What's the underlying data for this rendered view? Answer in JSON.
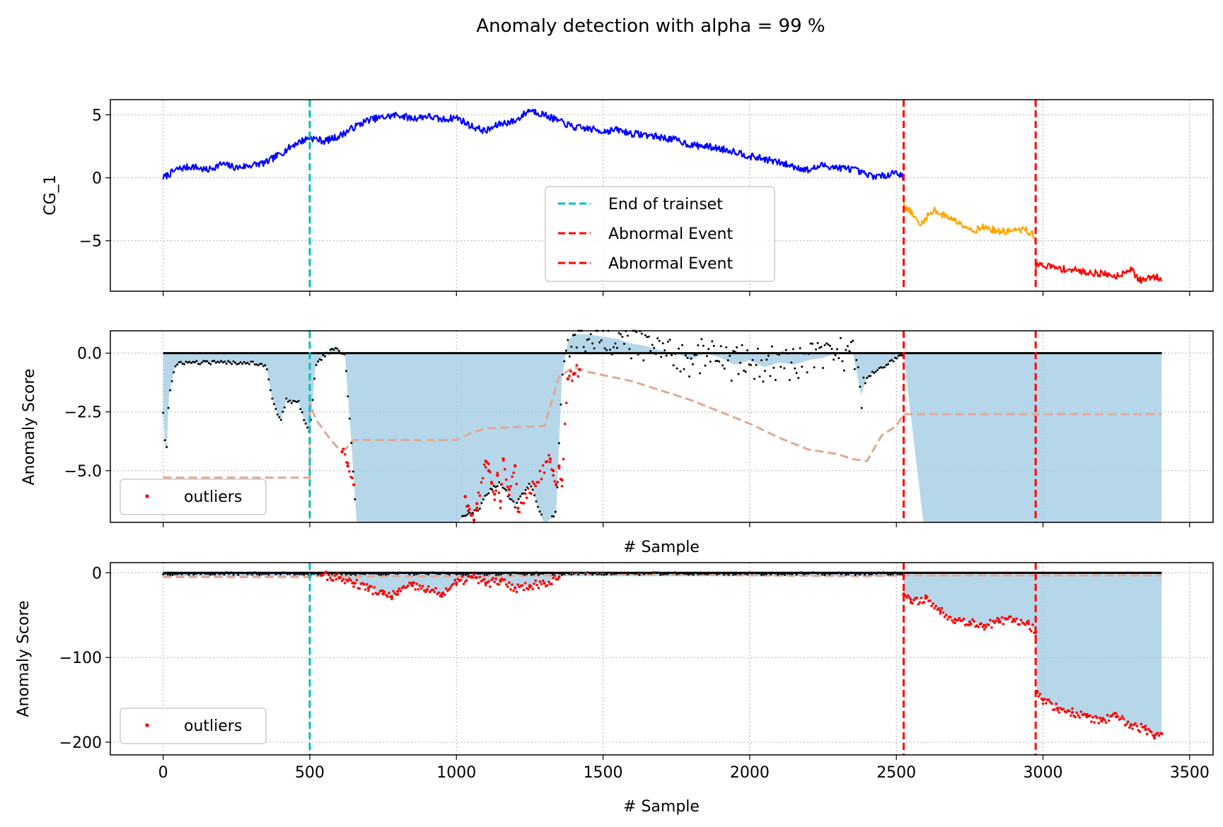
{
  "figure": {
    "title": "Anomaly detection with alpha = 99 %"
  },
  "chart_data": [
    {
      "type": "line",
      "ylabel": "CG_1",
      "xlabel": "",
      "xlim": [
        -180,
        3580
      ],
      "ylim": [
        -9.0,
        6.2
      ],
      "x_ticks": [
        0,
        500,
        1000,
        1500,
        2000,
        2500,
        3000,
        3500
      ],
      "y_ticks": [
        5,
        0,
        -5
      ],
      "y_tick_labels": [
        "5",
        "0",
        "−5"
      ],
      "grid": true,
      "segments": [
        {
          "color": "#0000ff",
          "from": 0,
          "to": 2525,
          "x": [
            0,
            50,
            100,
            150,
            200,
            250,
            300,
            350,
            400,
            450,
            500,
            550,
            600,
            650,
            700,
            750,
            800,
            850,
            900,
            950,
            1000,
            1050,
            1100,
            1150,
            1200,
            1250,
            1300,
            1350,
            1400,
            1450,
            1500,
            1550,
            1600,
            1650,
            1700,
            1750,
            1800,
            1850,
            1900,
            1950,
            2000,
            2050,
            2100,
            2150,
            2200,
            2250,
            2300,
            2350,
            2400,
            2450,
            2500,
            2525
          ],
          "y": [
            0.0,
            0.7,
            0.9,
            0.6,
            1.1,
            0.8,
            1.0,
            1.2,
            1.9,
            2.7,
            3.2,
            2.9,
            3.3,
            4.0,
            4.6,
            4.8,
            5.0,
            4.7,
            4.9,
            4.6,
            4.8,
            4.1,
            3.7,
            4.3,
            4.5,
            5.4,
            5.0,
            4.5,
            4.0,
            3.9,
            3.7,
            3.8,
            3.5,
            3.4,
            3.2,
            3.0,
            2.6,
            2.5,
            2.3,
            2.1,
            1.7,
            1.5,
            1.2,
            0.9,
            0.6,
            1.0,
            0.8,
            0.7,
            0.2,
            0.1,
            0.5,
            0.0
          ]
        },
        {
          "color": "#ffa500",
          "from": 2525,
          "to": 2975,
          "x": [
            2525,
            2550,
            2580,
            2600,
            2630,
            2650,
            2680,
            2700,
            2730,
            2760,
            2800,
            2850,
            2900,
            2940,
            2975
          ],
          "y": [
            -2.2,
            -2.7,
            -3.8,
            -3.2,
            -2.5,
            -2.9,
            -3.1,
            -3.4,
            -3.7,
            -4.2,
            -3.9,
            -4.3,
            -4.2,
            -4.1,
            -4.7
          ]
        },
        {
          "color": "#ff0000",
          "from": 2975,
          "to": 3405,
          "x": [
            2975,
            3000,
            3050,
            3100,
            3150,
            3200,
            3250,
            3300,
            3320,
            3340,
            3370,
            3405
          ],
          "y": [
            -7.0,
            -6.9,
            -7.2,
            -7.3,
            -7.5,
            -7.6,
            -7.8,
            -7.2,
            -7.9,
            -8.2,
            -7.8,
            -8.0
          ]
        }
      ],
      "vlines": [
        {
          "x": 500,
          "color": "#00bfbf",
          "label": "End of trainset"
        },
        {
          "x": 2525,
          "color": "#ff0000",
          "label": "Abnormal Event"
        },
        {
          "x": 2975,
          "color": "#ff0000",
          "label": "Abnormal Event"
        }
      ],
      "legend": {
        "placement": "lower-center",
        "entries": [
          "End of trainset",
          "Abnormal Event",
          "Abnormal Event"
        ]
      }
    },
    {
      "type": "scatter",
      "ylabel": "Anomaly Score",
      "xlabel": "# Sample",
      "xlim": [
        -180,
        3580
      ],
      "ylim": [
        -7.2,
        0.95
      ],
      "x_ticks": [
        0,
        500,
        1000,
        1500,
        2000,
        2500,
        3000,
        3500
      ],
      "y_ticks": [
        0.0,
        -2.5,
        -5.0
      ],
      "y_tick_labels": [
        "0.0",
        "−2.5",
        "−5.0"
      ],
      "grid": true,
      "zero_line": 0,
      "score": {
        "x": [
          0,
          10,
          20,
          40,
          60,
          100,
          150,
          200,
          250,
          300,
          350,
          370,
          380,
          400,
          420,
          440,
          460,
          480,
          500,
          520,
          550,
          580,
          600,
          620,
          640,
          660,
          700,
          800,
          900,
          1000,
          1020,
          1050,
          1080,
          1100,
          1150,
          1200,
          1250,
          1300,
          1340,
          1360,
          1380,
          1400,
          1450,
          1500,
          1550,
          1600,
          1650,
          1700,
          1750,
          1800,
          1850,
          1900,
          1950,
          2000,
          2050,
          2100,
          2150,
          2200,
          2250,
          2300,
          2350,
          2380,
          2400,
          2450,
          2500,
          2525,
          2600,
          2800,
          3000,
          3200,
          3405
        ],
        "y": [
          -2.5,
          -4.5,
          -1.8,
          -0.6,
          -0.4,
          -0.4,
          -0.4,
          -0.4,
          -0.4,
          -0.4,
          -0.5,
          -1.8,
          -2.2,
          -2.9,
          -2.0,
          -2.1,
          -2.0,
          -2.8,
          -3.4,
          -0.5,
          -0.1,
          0.2,
          0.1,
          -0.1,
          -3.5,
          -7.3,
          -7.3,
          -7.3,
          -7.3,
          -7.3,
          -7.0,
          -6.8,
          -6.6,
          -6.0,
          -5.5,
          -6.5,
          -5.5,
          -7.3,
          -6.8,
          -1.0,
          0.5,
          0.8,
          0.8,
          0.7,
          0.6,
          0.4,
          0.3,
          0.1,
          0.0,
          -0.3,
          0.0,
          -0.2,
          -0.5,
          -0.3,
          -0.6,
          -0.4,
          -0.5,
          -0.3,
          -0.2,
          0.0,
          0.1,
          -1.8,
          -1.0,
          -0.6,
          -0.2,
          -0.1,
          -8.0,
          -8.0,
          -8.0,
          -8.0,
          -8.0
        ]
      },
      "threshold": {
        "color": "#e0a897",
        "x": [
          0,
          500,
          500,
          520,
          560,
          600,
          620,
          650,
          1000,
          1050,
          1100,
          1300,
          1350,
          1400,
          1450,
          1600,
          1700,
          1800,
          1900,
          2000,
          2100,
          2200,
          2300,
          2350,
          2400,
          2450,
          2500,
          2525,
          3405
        ],
        "y": [
          -5.3,
          -5.3,
          -2.1,
          -2.8,
          -3.5,
          -4.1,
          -4.1,
          -3.7,
          -3.7,
          -3.4,
          -3.2,
          -3.1,
          -1.0,
          -0.6,
          -0.8,
          -1.2,
          -1.6,
          -2.0,
          -2.5,
          -3.0,
          -3.6,
          -4.1,
          -4.3,
          -4.5,
          -4.6,
          -3.5,
          -3.1,
          -2.6,
          -2.6
        ]
      },
      "outliers": {
        "color": "#ff0000",
        "x": [
          610,
          630,
          650,
          1030,
          1040,
          1050,
          1060,
          1070,
          1100,
          1110,
          1120,
          1130,
          1140,
          1150,
          1160,
          1180,
          1200,
          1210,
          1320,
          1330,
          1340,
          1350,
          1360,
          1380,
          1400,
          1420
        ],
        "y": [
          -4.2,
          -4.8,
          -5.6,
          -6.1,
          -6.5,
          -6.9,
          -7.1,
          -6.4,
          -4.6,
          -5.0,
          -5.5,
          -6.0,
          -5.2,
          -6.3,
          -4.5,
          -5.8,
          -4.8,
          -6.6,
          -4.5,
          -5.0,
          -5.6,
          -4.8,
          -5.4,
          -1.1,
          -0.9,
          -0.7
        ]
      },
      "vlines": [
        500,
        2525,
        2975
      ],
      "legend": {
        "placement": "lower-left",
        "entries": [
          "outliers"
        ]
      }
    },
    {
      "type": "scatter",
      "ylabel": "Anomaly Score",
      "xlabel": "# Sample",
      "xlim": [
        -180,
        3580
      ],
      "ylim": [
        -215,
        12
      ],
      "x_ticks": [
        0,
        500,
        1000,
        1500,
        2000,
        2500,
        3000,
        3500
      ],
      "x_tick_labels": [
        "0",
        "500",
        "1000",
        "1500",
        "2000",
        "2500",
        "3000",
        "3500"
      ],
      "y_ticks": [
        0,
        -100,
        -200
      ],
      "y_tick_labels": [
        "0",
        "−100",
        "−200"
      ],
      "grid": true,
      "zero_line": 0,
      "threshold": {
        "color": "#e0a897",
        "x": [
          0,
          500,
          550,
          650,
          1000,
          1350,
          1400,
          1600,
          2000,
          2400,
          2525,
          3405
        ],
        "y": [
          -5,
          -5,
          -3,
          -4,
          -4,
          -3,
          -1,
          -2,
          -3,
          -4,
          -3,
          -3
        ]
      },
      "outliers": {
        "color": "#ff0000",
        "x": [
          540,
          600,
          650,
          700,
          750,
          780,
          800,
          850,
          900,
          950,
          1000,
          1050,
          1100,
          1150,
          1200,
          1250,
          1300,
          1350,
          2525,
          2550,
          2600,
          2650,
          2700,
          2750,
          2800,
          2850,
          2900,
          2950,
          2975,
          2980,
          3000,
          3050,
          3100,
          3150,
          3200,
          3250,
          3300,
          3350,
          3380,
          3405
        ],
        "y": [
          -3,
          -6,
          -12,
          -18,
          -25,
          -28,
          -22,
          -15,
          -20,
          -25,
          -12,
          -5,
          -12,
          -10,
          -18,
          -15,
          -12,
          -5,
          -25,
          -35,
          -30,
          -45,
          -55,
          -58,
          -62,
          -58,
          -55,
          -60,
          -70,
          -140,
          -150,
          -160,
          -165,
          -170,
          -175,
          -170,
          -180,
          -185,
          -195,
          -190
        ]
      },
      "vlines": [
        500,
        2525,
        2975
      ],
      "legend": {
        "placement": "lower-left",
        "entries": [
          "outliers"
        ]
      }
    }
  ]
}
